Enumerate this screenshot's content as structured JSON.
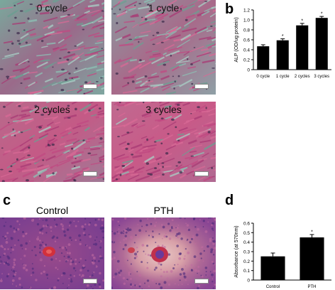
{
  "panels": {
    "a": {
      "letter": "a",
      "images": [
        {
          "label": "0 cycle"
        },
        {
          "label": "1 cycle"
        },
        {
          "label": "2 cycles"
        },
        {
          "label": "3 cycles"
        }
      ]
    },
    "b": {
      "letter": "b"
    },
    "c": {
      "letter": "c",
      "images": [
        {
          "label": "Control"
        },
        {
          "label": "PTH"
        }
      ]
    },
    "d": {
      "letter": "d"
    }
  },
  "colors": {
    "bar": "#000000",
    "stain_green": "#6fa89a",
    "stain_pink": "#b84a7a",
    "stain_purple": "#7a3f8c"
  },
  "chart_data": [
    {
      "type": "bar",
      "panel": "b",
      "categories": [
        "0 cycle",
        "1 cycle",
        "2 cycles",
        "3 cycles"
      ],
      "values": [
        0.47,
        0.59,
        0.89,
        1.04
      ],
      "errors": [
        0.03,
        0.03,
        0.04,
        0.03
      ],
      "significance": [
        "",
        "*",
        "*",
        "*"
      ],
      "ylabel": "ALP (OD/ug protein)",
      "ylim": [
        0,
        1.2
      ],
      "yticks": [
        "0",
        "0.2",
        "0.4",
        "0.6",
        "0.8",
        "1.0",
        "1.2"
      ],
      "grid": false
    },
    {
      "type": "bar",
      "panel": "d",
      "categories": [
        "Control",
        "PTH"
      ],
      "values": [
        0.25,
        0.45
      ],
      "errors": [
        0.035,
        0.03
      ],
      "significance": [
        "",
        "*"
      ],
      "ylabel": "Absorbance (at 570nm)",
      "ylim": [
        0,
        0.6
      ],
      "yticks": [
        "0",
        "0.1",
        "0.2",
        "0.3",
        "0.4",
        "0.5",
        "0.6"
      ],
      "grid": false
    }
  ]
}
